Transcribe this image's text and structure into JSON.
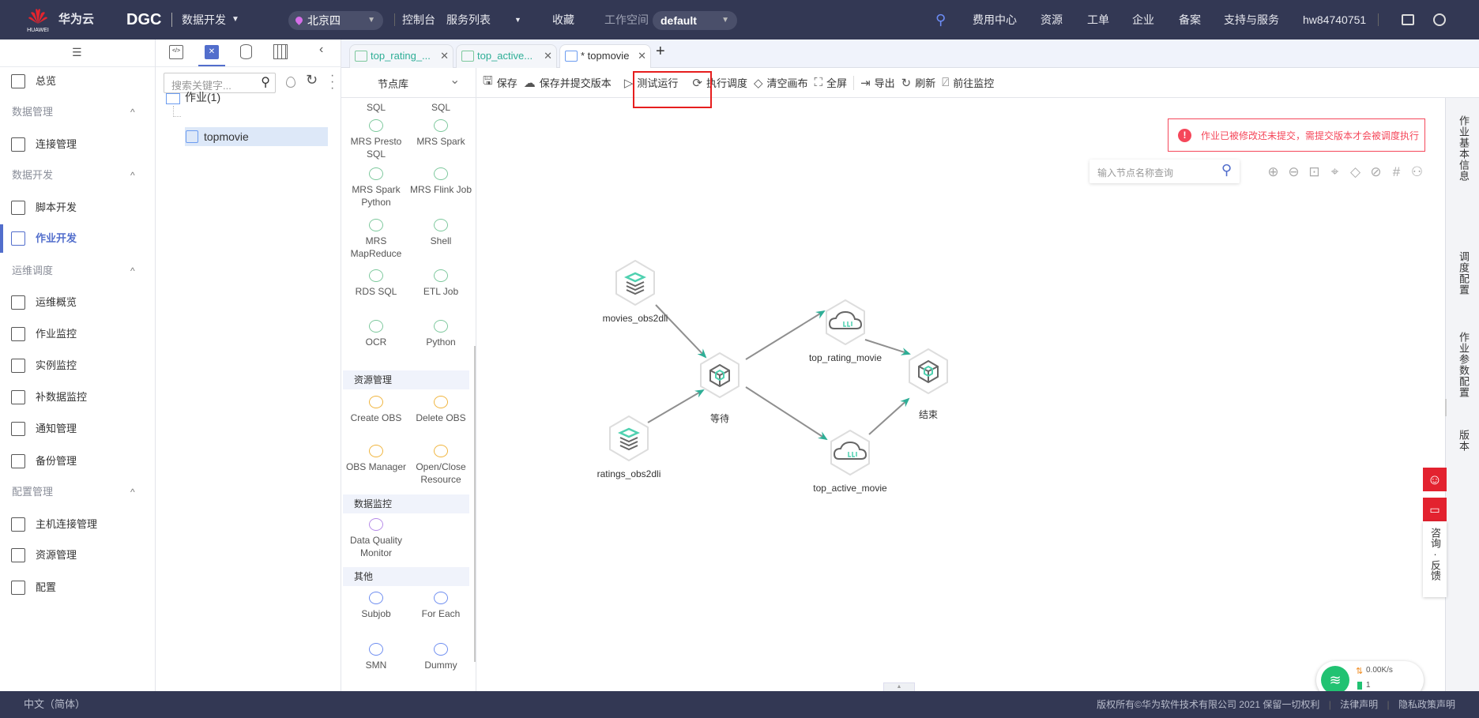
{
  "header": {
    "brand_sub": "HUAWEI",
    "brand": "华为云",
    "product": "DGC",
    "module": "数据开发",
    "region": "北京四",
    "nav": [
      "控制台",
      "服务列表",
      "收藏"
    ],
    "workspace_label": "工作空间",
    "workspace": "default",
    "right_nav": [
      "费用中心",
      "资源",
      "工单",
      "企业",
      "备案",
      "支持与服务"
    ],
    "user": "hw84740751"
  },
  "sidebar": {
    "items": [
      {
        "label": "总览",
        "type": "item"
      },
      {
        "label": "数据管理",
        "type": "group"
      },
      {
        "label": "连接管理",
        "type": "item"
      },
      {
        "label": "数据开发",
        "type": "group"
      },
      {
        "label": "脚本开发",
        "type": "item"
      },
      {
        "label": "作业开发",
        "type": "item",
        "active": true
      },
      {
        "label": "运维调度",
        "type": "group"
      },
      {
        "label": "运维概览",
        "type": "item"
      },
      {
        "label": "作业监控",
        "type": "item"
      },
      {
        "label": "实例监控",
        "type": "item"
      },
      {
        "label": "补数据监控",
        "type": "item"
      },
      {
        "label": "通知管理",
        "type": "item"
      },
      {
        "label": "备份管理",
        "type": "item"
      },
      {
        "label": "配置管理",
        "type": "group"
      },
      {
        "label": "主机连接管理",
        "type": "item"
      },
      {
        "label": "资源管理",
        "type": "item"
      },
      {
        "label": "配置",
        "type": "item"
      }
    ]
  },
  "tree": {
    "search_placeholder": "搜索关键字...",
    "folder": "作业(1)",
    "job": "topmovie"
  },
  "tabs": [
    {
      "label": "top_rating_...",
      "icon": "dli-icon"
    },
    {
      "label": "top_active...",
      "icon": "dli-icon"
    },
    {
      "label": "* topmovie",
      "icon": "job-icon",
      "active": true
    }
  ],
  "node_library": {
    "title": "节点库",
    "top_partial": [
      "SQL",
      "SQL"
    ],
    "nodes": [
      "MRS Presto SQL",
      "MRS Spark",
      "MRS Spark Python",
      "MRS Flink Job",
      "MRS MapReduce",
      "Shell",
      "RDS SQL",
      "ETL Job",
      "OCR",
      "Python"
    ],
    "sections": [
      {
        "title": "资源管理",
        "nodes": [
          "Create OBS",
          "Delete OBS",
          "OBS Manager",
          "Open/Close Resource"
        ]
      },
      {
        "title": "数据监控",
        "nodes": [
          "Data Quality Monitor"
        ]
      },
      {
        "title": "其他",
        "nodes": [
          "Subjob",
          "For Each",
          "SMN",
          "Dummy"
        ]
      }
    ]
  },
  "toolbar": {
    "save": "保存",
    "save_submit": "保存并提交版本",
    "test_run": "测试运行",
    "schedule": "执行调度",
    "clear": "清空画布",
    "fullscreen": "全屏",
    "export": "导出",
    "refresh": "刷新",
    "monitor": "前往监控"
  },
  "canvas": {
    "alert": "作业已被修改还未提交，需提交版本才会被调度执行",
    "search_placeholder": "输入节点名称查询",
    "nodes": {
      "movies": "movies_obs2dli",
      "ratings": "ratings_obs2dli",
      "wait": "等待",
      "top_rating": "top_rating_movie",
      "top_active": "top_active_movie",
      "end": "结束"
    },
    "tools": [
      "zoom-in-icon",
      "zoom-out-icon",
      "fit-icon",
      "tag-add-icon",
      "tag-icon",
      "tag-link-icon",
      "grid-icon",
      "layout-icon"
    ]
  },
  "right_panel": [
    "作业基本信息",
    "调度配置",
    "作业参数配置",
    "版本"
  ],
  "float": {
    "feedback": "咨询·反馈"
  },
  "network": {
    "speed": "0.00K/s",
    "count": "1"
  },
  "footer": {
    "language": "中文（简体）",
    "copyright": "版权所有©华为软件技术有限公司 2021 保留一切权利",
    "legal": "法律声明",
    "privacy": "隐私政策声明"
  },
  "colors": {
    "header": "#333854",
    "accent": "#526ecc",
    "alert": "#f5475a",
    "edge_arrow": "#2eae96"
  }
}
